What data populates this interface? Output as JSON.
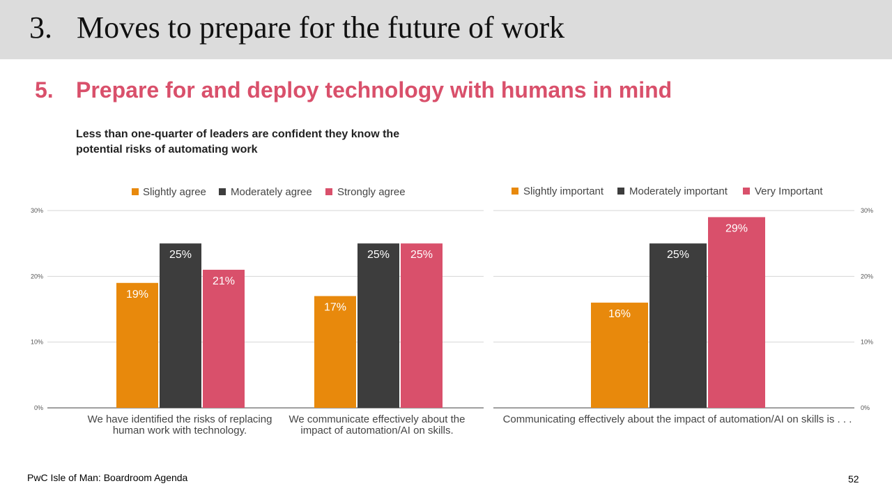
{
  "header": {
    "number": "3.",
    "title": "Moves to prepare for the future of work"
  },
  "section": {
    "number": "5.",
    "title": "Prepare for and deploy technology with humans in mind"
  },
  "subtitle": "Less than one-quarter of leaders are confident they know the potential risks of automating work",
  "footer": {
    "left": "PwC Isle of Man: Boardroom Agenda",
    "page": "52"
  },
  "colors": {
    "orange": "#e8890c",
    "dark": "#3d3d3d",
    "pink": "#d9506b"
  },
  "chart_data": [
    {
      "type": "bar",
      "categories": [
        [
          "We have identified the risks of replacing",
          "human work with technology."
        ],
        [
          "We communicate effectively about the",
          "impact of automation/AI on skills."
        ]
      ],
      "series": [
        {
          "name": "Slightly agree",
          "values": [
            19,
            17
          ],
          "labels": [
            "19%",
            "17%"
          ]
        },
        {
          "name": "Moderately agree",
          "values": [
            25,
            25
          ],
          "labels": [
            "25%",
            "25%"
          ]
        },
        {
          "name": "Strongly agree",
          "values": [
            21,
            25
          ],
          "labels": [
            "21%",
            "25%"
          ]
        }
      ],
      "yticks": [
        "30%",
        "20%",
        "10%",
        "0%"
      ],
      "ylim": [
        0,
        30
      ],
      "grid": true,
      "legend": "top"
    },
    {
      "type": "bar",
      "categories": [
        [
          "Communicating effectively about the impact of automation/AI on skills is . . ."
        ]
      ],
      "series": [
        {
          "name": "Slightly important",
          "values": [
            16
          ],
          "labels": [
            "16%"
          ]
        },
        {
          "name": "Moderately important",
          "values": [
            25
          ],
          "labels": [
            "25%"
          ]
        },
        {
          "name": "Very Important",
          "values": [
            29
          ],
          "labels": [
            "29%"
          ]
        }
      ],
      "yticks": [
        "30%",
        "20%",
        "10%",
        "0%"
      ],
      "ylim": [
        0,
        30
      ],
      "grid": true,
      "legend": "top"
    }
  ]
}
